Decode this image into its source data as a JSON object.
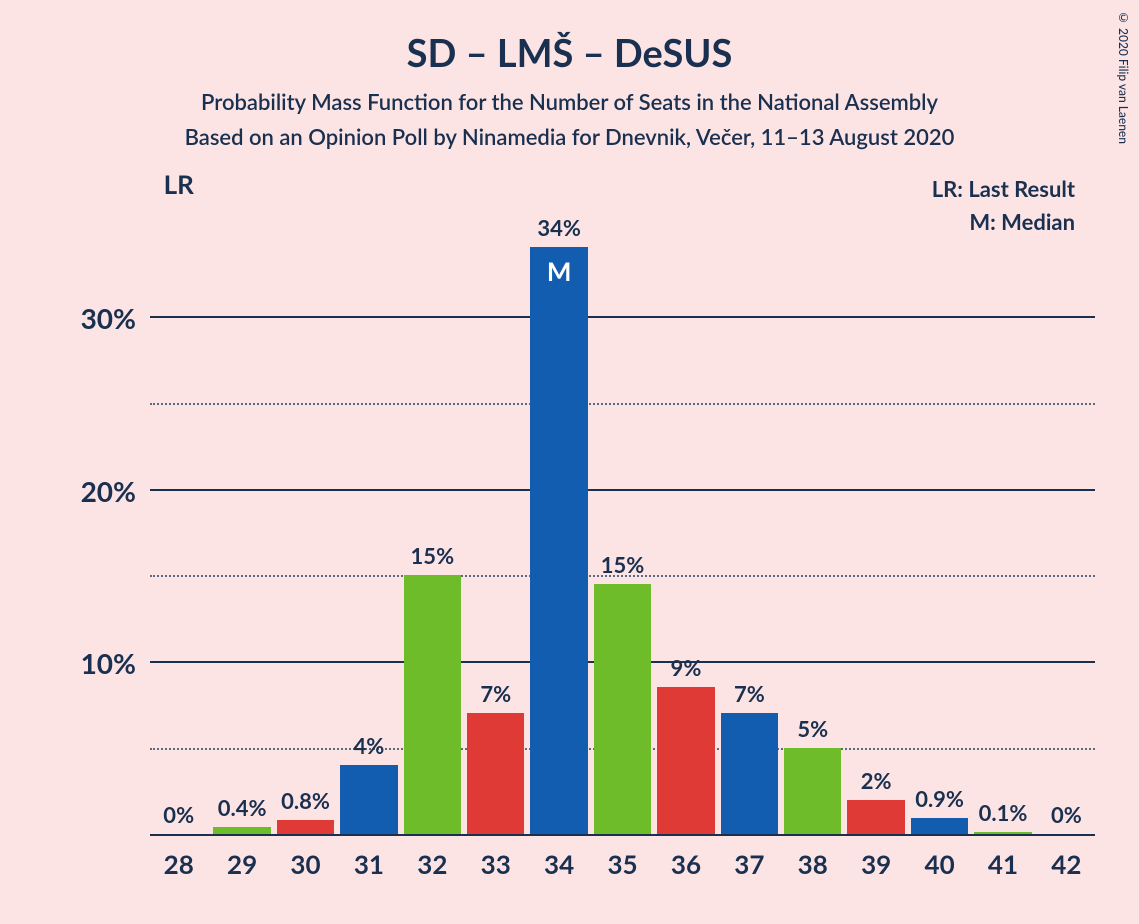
{
  "title": "SD – LMŠ – DeSUS",
  "subtitle1": "Probability Mass Function for the Number of Seats in the National Assembly",
  "subtitle2": "Based on an Opinion Poll by Ninamedia for Dnevnik, Večer, 11–13 August 2020",
  "legend": {
    "lr": "LR: Last Result",
    "m": "M: Median"
  },
  "copyright": "© 2020 Filip van Laenen",
  "chart": {
    "type": "bar",
    "y_axis": {
      "max": 35,
      "ticks": [
        {
          "value": 0,
          "label": "",
          "style": "major"
        },
        {
          "value": 5,
          "label": "",
          "style": "minor"
        },
        {
          "value": 10,
          "label": "10%",
          "style": "major"
        },
        {
          "value": 15,
          "label": "",
          "style": "minor"
        },
        {
          "value": 20,
          "label": "20%",
          "style": "major"
        },
        {
          "value": 25,
          "label": "",
          "style": "minor"
        },
        {
          "value": 30,
          "label": "30%",
          "style": "major"
        }
      ]
    },
    "colors": {
      "blue": "#135db0",
      "red": "#e03a36",
      "green": "#6fbc2a",
      "text": "#1a3050",
      "bg": "#fce4e4"
    },
    "bars": [
      {
        "x": "28",
        "value": 0,
        "label": "0%",
        "color": "blue",
        "lr": true
      },
      {
        "x": "29",
        "value": 0.4,
        "label": "0.4%",
        "color": "green"
      },
      {
        "x": "30",
        "value": 0.8,
        "label": "0.8%",
        "color": "red"
      },
      {
        "x": "31",
        "value": 4,
        "label": "4%",
        "color": "blue"
      },
      {
        "x": "32",
        "value": 15,
        "label": "15%",
        "color": "green"
      },
      {
        "x": "33",
        "value": 7,
        "label": "7%",
        "color": "red"
      },
      {
        "x": "34",
        "value": 34,
        "label": "34%",
        "color": "blue",
        "median": true
      },
      {
        "x": "35",
        "value": 14.5,
        "label": "15%",
        "color": "green"
      },
      {
        "x": "36",
        "value": 8.5,
        "label": "9%",
        "color": "red"
      },
      {
        "x": "37",
        "value": 7,
        "label": "7%",
        "color": "blue"
      },
      {
        "x": "38",
        "value": 5,
        "label": "5%",
        "color": "green"
      },
      {
        "x": "39",
        "value": 2,
        "label": "2%",
        "color": "red"
      },
      {
        "x": "40",
        "value": 0.9,
        "label": "0.9%",
        "color": "blue"
      },
      {
        "x": "41",
        "value": 0.1,
        "label": "0.1%",
        "color": "green"
      },
      {
        "x": "42",
        "value": 0,
        "label": "0%",
        "color": "red"
      }
    ],
    "lr_marker": "LR",
    "median_marker": "M"
  }
}
